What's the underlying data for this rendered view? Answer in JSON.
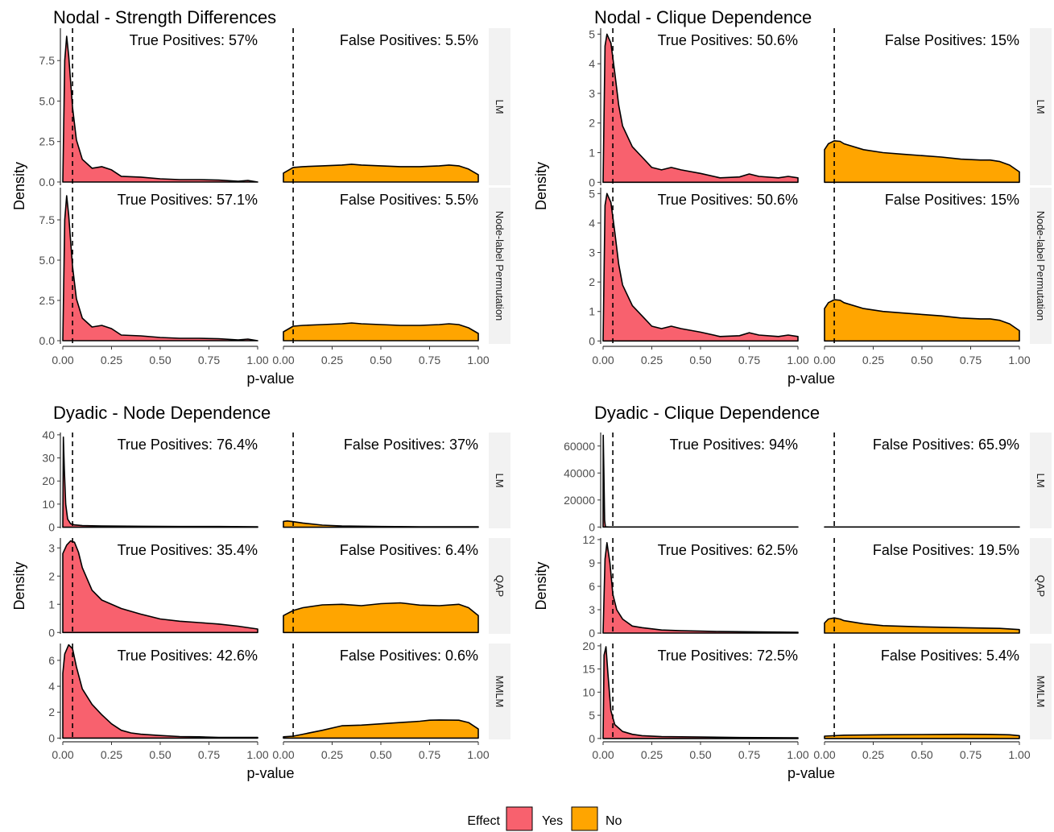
{
  "legend": {
    "title": "Effect",
    "items": [
      {
        "label": "Yes",
        "color": "#F8616E"
      },
      {
        "label": "No",
        "color": "#FFA500"
      }
    ]
  },
  "chart_data": [
    {
      "type": "area",
      "title": "Nodal - Strength Differences",
      "xlabel": "p-value",
      "ylabel": "Density",
      "xlim": [
        0,
        1
      ],
      "x_ticks": [
        0,
        0.25,
        0.5,
        0.75,
        1
      ],
      "x_tick_labels": [
        "0.00",
        "0.25",
        "0.50",
        "0.75",
        "1.00"
      ],
      "threshold": 0.05,
      "series_names": [
        "Yes",
        "No"
      ],
      "rows": [
        {
          "label": "LM",
          "ylim": [
            -0.2,
            9.5
          ],
          "y_ticks": [
            0,
            2.5,
            5,
            7.5
          ],
          "y_tick_labels": [
            "0.0",
            "2.5",
            "5.0",
            "7.5"
          ],
          "yes_text": "True Positives: 57%",
          "no_text": "False Positives: 5.5%",
          "yes": {
            "x": [
              0,
              0.01,
              0.02,
              0.03,
              0.05,
              0.07,
              0.1,
              0.15,
              0.2,
              0.25,
              0.3,
              0.4,
              0.5,
              0.6,
              0.7,
              0.8,
              0.9,
              0.95,
              1.0
            ],
            "y": [
              0,
              7.5,
              9.0,
              7.8,
              4.6,
              2.6,
              1.4,
              0.85,
              0.95,
              0.75,
              0.35,
              0.3,
              0.2,
              0.15,
              0.15,
              0.12,
              0.05,
              0.1,
              0
            ]
          },
          "no": {
            "x": [
              0,
              0.05,
              0.1,
              0.2,
              0.3,
              0.35,
              0.4,
              0.5,
              0.6,
              0.7,
              0.8,
              0.85,
              0.9,
              0.95,
              1.0
            ],
            "y": [
              0.55,
              0.9,
              0.95,
              1.0,
              1.05,
              1.1,
              1.05,
              1.0,
              0.95,
              0.95,
              1.0,
              1.05,
              1.0,
              0.8,
              0.45
            ]
          }
        },
        {
          "label": "Node-label Permutation",
          "ylim": [
            -0.2,
            9.5
          ],
          "y_ticks": [
            0,
            2.5,
            5,
            7.5
          ],
          "y_tick_labels": [
            "0.0",
            "2.5",
            "5.0",
            "7.5"
          ],
          "yes_text": "True Positives: 57.1%",
          "no_text": "False Positives: 5.5%",
          "yes": {
            "x": [
              0,
              0.01,
              0.02,
              0.03,
              0.05,
              0.07,
              0.1,
              0.15,
              0.2,
              0.25,
              0.3,
              0.4,
              0.5,
              0.6,
              0.7,
              0.8,
              0.9,
              0.95,
              1.0
            ],
            "y": [
              0,
              7.5,
              9.0,
              7.8,
              4.6,
              2.6,
              1.4,
              0.85,
              0.95,
              0.75,
              0.35,
              0.3,
              0.2,
              0.15,
              0.15,
              0.12,
              0.05,
              0.1,
              0
            ]
          },
          "no": {
            "x": [
              0,
              0.05,
              0.1,
              0.2,
              0.3,
              0.35,
              0.4,
              0.5,
              0.6,
              0.7,
              0.8,
              0.85,
              0.9,
              0.95,
              1.0
            ],
            "y": [
              0.55,
              0.9,
              0.95,
              1.0,
              1.05,
              1.1,
              1.05,
              1.0,
              0.95,
              0.95,
              1.0,
              1.05,
              1.0,
              0.8,
              0.45
            ]
          }
        }
      ]
    },
    {
      "type": "area",
      "title": "Nodal - Clique Dependence",
      "xlabel": "p-value",
      "ylabel": "Density",
      "xlim": [
        0,
        1
      ],
      "x_ticks": [
        0,
        0.25,
        0.5,
        0.75,
        1
      ],
      "x_tick_labels": [
        "0.00",
        "0.25",
        "0.50",
        "0.75",
        "1.00"
      ],
      "threshold": 0.05,
      "series_names": [
        "Yes",
        "No"
      ],
      "rows": [
        {
          "label": "LM",
          "ylim": [
            -0.1,
            5.2
          ],
          "y_ticks": [
            0,
            1,
            2,
            3,
            4,
            5
          ],
          "y_tick_labels": [
            "0",
            "1",
            "2",
            "3",
            "4",
            "5"
          ],
          "yes_text": "True Positives: 50.6%",
          "no_text": "False Positives: 15%",
          "yes": {
            "x": [
              0,
              0.01,
              0.02,
              0.04,
              0.06,
              0.08,
              0.1,
              0.15,
              0.2,
              0.25,
              0.3,
              0.35,
              0.4,
              0.5,
              0.6,
              0.7,
              0.75,
              0.8,
              0.9,
              0.95,
              1.0
            ],
            "y": [
              0,
              4.6,
              5.0,
              4.7,
              3.7,
              2.6,
              1.9,
              1.2,
              0.85,
              0.5,
              0.42,
              0.5,
              0.42,
              0.3,
              0.15,
              0.18,
              0.28,
              0.2,
              0.15,
              0.2,
              0.15
            ]
          },
          "no": {
            "x": [
              0,
              0.02,
              0.05,
              0.08,
              0.1,
              0.2,
              0.3,
              0.4,
              0.5,
              0.6,
              0.7,
              0.8,
              0.85,
              0.9,
              0.95,
              1.0
            ],
            "y": [
              1.1,
              1.3,
              1.4,
              1.38,
              1.3,
              1.1,
              1.0,
              0.95,
              0.9,
              0.85,
              0.78,
              0.75,
              0.75,
              0.7,
              0.58,
              0.35
            ]
          }
        },
        {
          "label": "Node-label Permutation",
          "ylim": [
            -0.1,
            5.2
          ],
          "y_ticks": [
            0,
            1,
            2,
            3,
            4,
            5
          ],
          "y_tick_labels": [
            "0",
            "1",
            "2",
            "3",
            "4",
            "5"
          ],
          "yes_text": "True Positives: 50.6%",
          "no_text": "False Positives: 15%",
          "yes": {
            "x": [
              0,
              0.01,
              0.02,
              0.04,
              0.06,
              0.08,
              0.1,
              0.15,
              0.2,
              0.25,
              0.3,
              0.35,
              0.4,
              0.5,
              0.6,
              0.7,
              0.75,
              0.8,
              0.9,
              0.95,
              1.0
            ],
            "y": [
              0,
              4.6,
              5.0,
              4.7,
              3.7,
              2.6,
              1.9,
              1.2,
              0.85,
              0.5,
              0.42,
              0.5,
              0.42,
              0.3,
              0.15,
              0.18,
              0.28,
              0.2,
              0.15,
              0.2,
              0.15
            ]
          },
          "no": {
            "x": [
              0,
              0.02,
              0.05,
              0.08,
              0.1,
              0.2,
              0.3,
              0.4,
              0.5,
              0.6,
              0.7,
              0.8,
              0.85,
              0.9,
              0.95,
              1.0
            ],
            "y": [
              1.1,
              1.3,
              1.4,
              1.38,
              1.3,
              1.1,
              1.0,
              0.95,
              0.9,
              0.85,
              0.78,
              0.75,
              0.75,
              0.7,
              0.58,
              0.35
            ]
          }
        }
      ]
    },
    {
      "type": "area",
      "title": "Dyadic - Node Dependence",
      "xlabel": "p-value",
      "ylabel": "Density",
      "xlim": [
        0,
        1
      ],
      "x_ticks": [
        0,
        0.25,
        0.5,
        0.75,
        1
      ],
      "x_tick_labels": [
        "0.00",
        "0.25",
        "0.50",
        "0.75",
        "1.00"
      ],
      "threshold": 0.05,
      "series_names": [
        "Yes",
        "No"
      ],
      "rows": [
        {
          "label": "LM",
          "ylim": [
            -0.5,
            41
          ],
          "y_ticks": [
            0,
            10,
            20,
            30,
            40
          ],
          "y_tick_labels": [
            "0",
            "10",
            "20",
            "30",
            "40"
          ],
          "yes_text": "True Positives: 76.4%",
          "no_text": "False Positives: 37%",
          "yes": {
            "x": [
              0,
              0.003,
              0.008,
              0.015,
              0.025,
              0.04,
              0.06,
              0.1,
              0.2,
              0.4,
              0.6,
              0.8,
              1.0
            ],
            "y": [
              0,
              39,
              25,
              10,
              3.5,
              1.5,
              1.0,
              0.7,
              0.5,
              0.4,
              0.3,
              0.3,
              0.2
            ]
          },
          "no": {
            "x": [
              0,
              0.02,
              0.05,
              0.1,
              0.2,
              0.3,
              0.5,
              0.7,
              0.9,
              1.0
            ],
            "y": [
              2.5,
              2.7,
              2.4,
              1.8,
              0.9,
              0.5,
              0.3,
              0.2,
              0.2,
              0.2
            ]
          }
        },
        {
          "label": "QAP",
          "ylim": [
            -0.05,
            3.35
          ],
          "y_ticks": [
            0,
            1,
            2,
            3
          ],
          "y_tick_labels": [
            "0",
            "1",
            "2",
            "3"
          ],
          "yes_text": "True Positives: 35.4%",
          "no_text": "False Positives: 6.4%",
          "yes": {
            "x": [
              0,
              0.02,
              0.04,
              0.06,
              0.08,
              0.1,
              0.15,
              0.2,
              0.3,
              0.4,
              0.5,
              0.6,
              0.7,
              0.8,
              0.9,
              1.0
            ],
            "y": [
              2.8,
              3.1,
              3.25,
              3.2,
              2.85,
              2.3,
              1.5,
              1.15,
              0.85,
              0.65,
              0.48,
              0.4,
              0.35,
              0.3,
              0.22,
              0.12
            ]
          },
          "no": {
            "x": [
              0,
              0.05,
              0.1,
              0.2,
              0.3,
              0.4,
              0.5,
              0.6,
              0.7,
              0.8,
              0.9,
              0.95,
              1.0
            ],
            "y": [
              0.6,
              0.78,
              0.88,
              0.98,
              1.0,
              0.95,
              1.02,
              1.05,
              0.97,
              0.95,
              1.0,
              0.88,
              0.6
            ]
          }
        },
        {
          "label": "MMLM",
          "ylim": [
            -0.1,
            7.3
          ],
          "y_ticks": [
            0,
            2,
            4,
            6
          ],
          "y_tick_labels": [
            "0",
            "2",
            "4",
            "6"
          ],
          "yes_text": "True Positives: 42.6%",
          "no_text": "False Positives: 0.6%",
          "yes": {
            "x": [
              0,
              0.01,
              0.03,
              0.05,
              0.07,
              0.1,
              0.15,
              0.2,
              0.25,
              0.3,
              0.35,
              0.4,
              0.5,
              0.6,
              0.7,
              0.8,
              1.0
            ],
            "y": [
              5.0,
              6.5,
              7.2,
              6.9,
              5.5,
              3.8,
              2.6,
              1.8,
              1.1,
              0.6,
              0.4,
              0.3,
              0.2,
              0.12,
              0.1,
              0.05,
              0.05
            ]
          },
          "no": {
            "x": [
              0,
              0.05,
              0.1,
              0.2,
              0.3,
              0.4,
              0.5,
              0.6,
              0.7,
              0.75,
              0.8,
              0.9,
              0.95,
              1.0
            ],
            "y": [
              0.1,
              0.15,
              0.3,
              0.6,
              0.95,
              1.0,
              1.1,
              1.2,
              1.3,
              1.38,
              1.4,
              1.38,
              1.2,
              0.7
            ]
          }
        }
      ]
    },
    {
      "type": "area",
      "title": "Dyadic - Clique Dependence",
      "xlabel": "p-value",
      "ylabel": "Density",
      "xlim": [
        0,
        1
      ],
      "x_ticks": [
        0,
        0.25,
        0.5,
        0.75,
        1
      ],
      "x_tick_labels": [
        "0.00",
        "0.25",
        "0.50",
        "0.75",
        "1.00"
      ],
      "threshold": 0.05,
      "series_names": [
        "Yes",
        "No"
      ],
      "rows": [
        {
          "label": "LM",
          "ylim": [
            -1000,
            70000
          ],
          "y_ticks": [
            0,
            20000,
            40000,
            60000
          ],
          "y_tick_labels": [
            "0",
            "20000",
            "40000",
            "60000"
          ],
          "yes_text": "True Positives: 94%",
          "no_text": "False Positives: 65.9%",
          "yes": {
            "x": [
              0,
              0.001,
              0.004,
              0.008,
              0.012,
              0.03,
              1.0
            ],
            "y": [
              0,
              68000,
              40000,
              5000,
              200,
              0,
              0
            ]
          },
          "no": {
            "x": [
              0,
              0.5,
              1.0
            ],
            "y": [
              0,
              0,
              0
            ]
          }
        },
        {
          "label": "QAP",
          "ylim": [
            -0.1,
            12.2
          ],
          "y_ticks": [
            0,
            3,
            6,
            9,
            12
          ],
          "y_tick_labels": [
            "0",
            "3",
            "6",
            "9",
            "12"
          ],
          "yes_text": "True Positives: 62.5%",
          "no_text": "False Positives: 19.5%",
          "yes": {
            "x": [
              0,
              0.01,
              0.02,
              0.035,
              0.05,
              0.07,
              0.1,
              0.15,
              0.2,
              0.3,
              0.4,
              0.5,
              0.6,
              0.8,
              1.0
            ],
            "y": [
              0,
              9.5,
              11.6,
              9.0,
              5.0,
              3.0,
              1.8,
              0.9,
              0.7,
              0.4,
              0.3,
              0.25,
              0.2,
              0.15,
              0.1
            ]
          },
          "no": {
            "x": [
              0,
              0.02,
              0.05,
              0.08,
              0.1,
              0.2,
              0.3,
              0.5,
              0.7,
              0.9,
              1.0
            ],
            "y": [
              1.3,
              1.8,
              1.95,
              1.8,
              1.6,
              1.2,
              0.95,
              0.8,
              0.7,
              0.6,
              0.45
            ]
          }
        },
        {
          "label": "MMLM",
          "ylim": [
            -0.2,
            20.5
          ],
          "y_ticks": [
            0,
            5,
            10,
            15,
            20
          ],
          "y_tick_labels": [
            "0",
            "5",
            "10",
            "15",
            "20"
          ],
          "yes_text": "True Positives: 72.5%",
          "no_text": "False Positives: 5.4%",
          "yes": {
            "x": [
              0,
              0.005,
              0.015,
              0.025,
              0.04,
              0.06,
              0.1,
              0.15,
              0.2,
              0.3,
              0.5,
              0.7,
              1.0
            ],
            "y": [
              0,
              18,
              19.8,
              14,
              6,
              3.0,
              1.5,
              0.9,
              0.6,
              0.4,
              0.3,
              0.2,
              0.15
            ]
          },
          "no": {
            "x": [
              0,
              0.1,
              0.3,
              0.5,
              0.7,
              0.85,
              0.95,
              1.0
            ],
            "y": [
              0.5,
              0.7,
              0.8,
              0.85,
              0.9,
              0.88,
              0.8,
              0.6
            ]
          }
        }
      ]
    }
  ]
}
